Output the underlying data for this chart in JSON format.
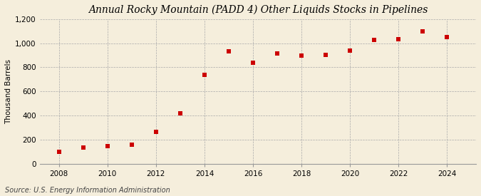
{
  "title": "Annual Rocky Mountain (PADD 4) Other Liquids Stocks in Pipelines",
  "ylabel": "Thousand Barrels",
  "source": "Source: U.S. Energy Information Administration",
  "background_color": "#f5eedc",
  "plot_background_color": "#f5eedc",
  "marker_color": "#cc0000",
  "years": [
    2008,
    2009,
    2010,
    2011,
    2012,
    2013,
    2014,
    2015,
    2016,
    2017,
    2018,
    2019,
    2020,
    2021,
    2022,
    2023,
    2024
  ],
  "values": [
    100,
    135,
    145,
    160,
    265,
    420,
    735,
    935,
    835,
    915,
    895,
    905,
    940,
    1025,
    1030,
    1095,
    1048
  ],
  "ylim": [
    0,
    1200
  ],
  "yticks": [
    0,
    200,
    400,
    600,
    800,
    1000,
    1200
  ],
  "ytick_labels": [
    "0",
    "200",
    "400",
    "600",
    "800",
    "1,000",
    "1,200"
  ],
  "xticks": [
    2008,
    2010,
    2012,
    2014,
    2016,
    2018,
    2020,
    2022,
    2024
  ],
  "title_fontsize": 10,
  "axis_fontsize": 7.5,
  "source_fontsize": 7,
  "marker_size": 5
}
